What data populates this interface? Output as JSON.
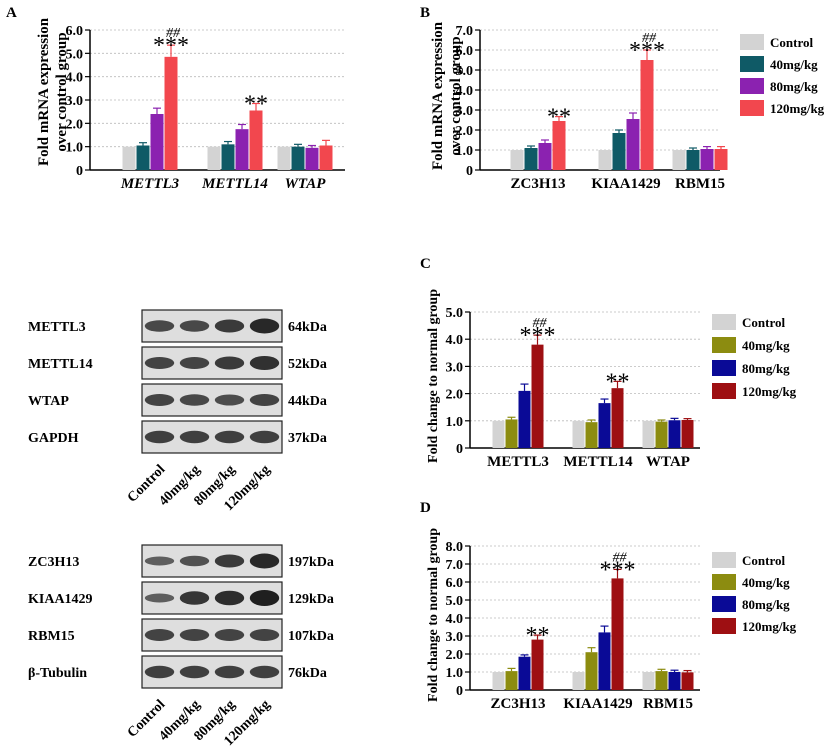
{
  "colors": {
    "control": "#d3d3d3",
    "teal": "#0f5a66",
    "purple": "#8b22b0",
    "salmon": "#f2474e",
    "olive": "#8c8c10",
    "navy": "#0a0a96",
    "darkred": "#9e0f12",
    "axis": "#000000",
    "grid": "#bbbbbb"
  },
  "chart_data": [
    {
      "panel": "A",
      "type": "bar",
      "title": "",
      "ylabel": "Fold mRNA expression over control group",
      "ylim": [
        0,
        6
      ],
      "yticks": [
        "0",
        "1.0",
        "2.0",
        "3.0",
        "4.0",
        "5.0",
        "6.0"
      ],
      "tick_step": 1,
      "categories": [
        "METTL3",
        "METTL14",
        "WTAP"
      ],
      "italic_categories": true,
      "series": [
        {
          "name": "Control",
          "color_key": "control",
          "values": [
            1.0,
            1.0,
            1.0
          ],
          "errors": [
            0.02,
            0.02,
            0.02
          ]
        },
        {
          "name": "40mg/kg",
          "color_key": "teal",
          "values": [
            1.05,
            1.1,
            1.0
          ],
          "errors": [
            0.12,
            0.12,
            0.1
          ]
        },
        {
          "name": "80mg/kg",
          "color_key": "purple",
          "values": [
            2.4,
            1.75,
            0.95
          ],
          "errors": [
            0.25,
            0.2,
            0.1
          ]
        },
        {
          "name": "120mg/kg",
          "color_key": "salmon",
          "values": [
            4.85,
            2.55,
            1.05
          ],
          "errors": [
            0.5,
            0.3,
            0.22
          ]
        }
      ],
      "annotations": [
        {
          "category": 0,
          "series": 3,
          "stars": "***",
          "hash": "##"
        },
        {
          "category": 1,
          "series": 3,
          "stars": "**",
          "hash": ""
        }
      ],
      "legend": "none"
    },
    {
      "panel": "B",
      "type": "bar",
      "title": "",
      "ylabel": "Fold mRNA expression over control group",
      "ylim": [
        0,
        7
      ],
      "yticks": [
        "0",
        "1.0",
        "2.0",
        "3.0",
        "4.0",
        "5.0",
        "6.0",
        "7.0"
      ],
      "tick_step": 1,
      "categories": [
        "ZC3H13",
        "KIAA1429",
        "RBM15"
      ],
      "italic_categories": false,
      "series": [
        {
          "name": "Control",
          "color_key": "control",
          "values": [
            1.0,
            1.0,
            1.0
          ],
          "errors": [
            0.02,
            0.02,
            0.02
          ]
        },
        {
          "name": "40mg/kg",
          "color_key": "teal",
          "values": [
            1.1,
            1.85,
            1.0
          ],
          "errors": [
            0.1,
            0.15,
            0.1
          ]
        },
        {
          "name": "80mg/kg",
          "color_key": "purple",
          "values": [
            1.35,
            2.55,
            1.05
          ],
          "errors": [
            0.15,
            0.3,
            0.12
          ]
        },
        {
          "name": "120mg/kg",
          "color_key": "salmon",
          "values": [
            2.45,
            5.5,
            1.05
          ],
          "errors": [
            0.22,
            0.5,
            0.12
          ]
        }
      ],
      "annotations": [
        {
          "category": 0,
          "series": 3,
          "stars": "**",
          "hash": ""
        },
        {
          "category": 1,
          "series": 3,
          "stars": "***",
          "hash": "##"
        }
      ],
      "legend": "right"
    },
    {
      "panel": "C",
      "type": "bar",
      "title": "",
      "ylabel": "Fold change to normal group",
      "ylim": [
        0,
        5
      ],
      "yticks": [
        "0",
        "1.0",
        "2.0",
        "3.0",
        "4.0",
        "5.0"
      ],
      "tick_step": 1,
      "categories": [
        "METTL3",
        "METTL14",
        "WTAP"
      ],
      "italic_categories": false,
      "series": [
        {
          "name": "Control",
          "color_key": "control",
          "values": [
            1.0,
            1.0,
            1.0
          ],
          "errors": [
            0.02,
            0.02,
            0.02
          ]
        },
        {
          "name": "40mg/kg",
          "color_key": "olive",
          "values": [
            1.05,
            0.95,
            0.97
          ],
          "errors": [
            0.08,
            0.08,
            0.06
          ]
        },
        {
          "name": "80mg/kg",
          "color_key": "navy",
          "values": [
            2.1,
            1.65,
            1.02
          ],
          "errors": [
            0.25,
            0.15,
            0.07
          ]
        },
        {
          "name": "120mg/kg",
          "color_key": "darkred",
          "values": [
            3.8,
            2.2,
            1.03
          ],
          "errors": [
            0.35,
            0.25,
            0.05
          ]
        }
      ],
      "annotations": [
        {
          "category": 0,
          "series": 3,
          "stars": "***",
          "hash": "##"
        },
        {
          "category": 1,
          "series": 3,
          "stars": "**",
          "hash": ""
        }
      ],
      "legend": "right"
    },
    {
      "panel": "D",
      "type": "bar",
      "title": "",
      "ylabel": "Fold change to normal group",
      "ylim": [
        0,
        8
      ],
      "yticks": [
        "0",
        "1.0",
        "2.0",
        "3.0",
        "4.0",
        "5.0",
        "6.0",
        "7.0",
        "8.0"
      ],
      "tick_step": 1,
      "categories": [
        "ZC3H13",
        "KIAA1429",
        "RBM15"
      ],
      "italic_categories": false,
      "series": [
        {
          "name": "Control",
          "color_key": "control",
          "values": [
            1.0,
            1.0,
            1.0
          ],
          "errors": [
            0.02,
            0.02,
            0.02
          ]
        },
        {
          "name": "40mg/kg",
          "color_key": "olive",
          "values": [
            1.05,
            2.1,
            1.05
          ],
          "errors": [
            0.15,
            0.25,
            0.1
          ]
        },
        {
          "name": "80mg/kg",
          "color_key": "navy",
          "values": [
            1.85,
            3.2,
            1.0
          ],
          "errors": [
            0.1,
            0.35,
            0.1
          ]
        },
        {
          "name": "120mg/kg",
          "color_key": "darkred",
          "values": [
            2.8,
            6.2,
            0.98
          ],
          "errors": [
            0.25,
            0.5,
            0.1
          ]
        }
      ],
      "annotations": [
        {
          "category": 0,
          "series": 3,
          "stars": "**",
          "hash": ""
        },
        {
          "category": 1,
          "series": 3,
          "stars": "***",
          "hash": "##"
        }
      ],
      "legend": "right"
    }
  ],
  "blots": [
    {
      "id": "blot-1",
      "rows": [
        {
          "label": "METTL3",
          "kda": "64kDa",
          "intensities": [
            0.55,
            0.55,
            0.7,
            0.9
          ]
        },
        {
          "label": "METTL14",
          "kda": "52kDa",
          "intensities": [
            0.6,
            0.6,
            0.7,
            0.8
          ]
        },
        {
          "label": "WTAP",
          "kda": "44kDa",
          "intensities": [
            0.6,
            0.55,
            0.5,
            0.6
          ]
        },
        {
          "label": "GAPDH",
          "kda": "37kDa",
          "intensities": [
            0.65,
            0.65,
            0.65,
            0.65
          ]
        }
      ],
      "lanes": [
        "Control",
        "40mg/kg",
        "80mg/kg",
        "120mg/kg"
      ]
    },
    {
      "id": "blot-2",
      "rows": [
        {
          "label": "ZC3H13",
          "kda": "197kDa",
          "intensities": [
            0.3,
            0.45,
            0.7,
            0.9
          ]
        },
        {
          "label": "KIAA1429",
          "kda": "129kDa",
          "intensities": [
            0.3,
            0.75,
            0.85,
            1.0
          ]
        },
        {
          "label": "RBM15",
          "kda": "107kDa",
          "intensities": [
            0.6,
            0.6,
            0.6,
            0.6
          ]
        },
        {
          "label": "β-Tubulin",
          "kda": "76kDa",
          "intensities": [
            0.65,
            0.65,
            0.65,
            0.65
          ]
        }
      ],
      "lanes": [
        "Control",
        "40mg/kg",
        "80mg/kg",
        "120mg/kg"
      ]
    }
  ]
}
